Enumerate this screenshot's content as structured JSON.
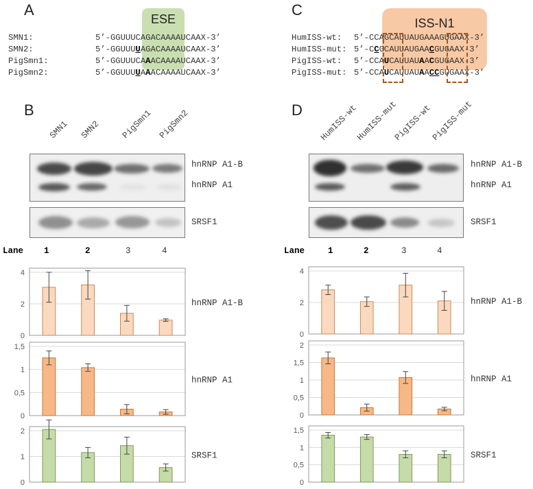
{
  "panel_letters": {
    "a": "A",
    "b": "B",
    "c": "C",
    "d": "D"
  },
  "highlights": {
    "ese": "ESE",
    "iss": "ISS-N1"
  },
  "panel_a": {
    "rows": [
      {
        "label": "SMN1:",
        "segments": [
          {
            "t": "5’-GGUUUC",
            "s": ""
          },
          {
            "t": "AGACAAAAUCAAX-3’",
            "s": ""
          }
        ]
      },
      {
        "label": "SMN2:",
        "segments": [
          {
            "t": "5’-GGUUU",
            "s": ""
          },
          {
            "t": "U",
            "s": "bu"
          },
          {
            "t": "AGACAAAAUCAAX-3’",
            "s": ""
          }
        ]
      },
      {
        "label": "PigSmn1:",
        "segments": [
          {
            "t": "5’-GGUUUCA",
            "s": ""
          },
          {
            "t": "A",
            "s": "b"
          },
          {
            "t": "ACAAAAUCAAX-3’",
            "s": ""
          }
        ]
      },
      {
        "label": "PigSmn2:",
        "segments": [
          {
            "t": "5’-GGUUU",
            "s": ""
          },
          {
            "t": "U",
            "s": "bu"
          },
          {
            "t": "A",
            "s": ""
          },
          {
            "t": "A",
            "s": "b"
          },
          {
            "t": "ACAAAAUCAAX-3’",
            "s": ""
          }
        ]
      }
    ]
  },
  "panel_c": {
    "rows": [
      {
        "label": "HumISS-wt:",
        "segments": [
          {
            "t": "5’-CCAGCAUUAUGAAAGUGAAX-3’",
            "s": ""
          }
        ]
      },
      {
        "label": "HumISS-mut:",
        "segments": [
          {
            "t": "5’-C",
            "s": ""
          },
          {
            "t": "C",
            "s": "bu"
          },
          {
            "t": "GCAUUAUGAA",
            "s": ""
          },
          {
            "t": "C",
            "s": "bu"
          },
          {
            "t": "GUGAAX-3’",
            "s": ""
          }
        ]
      },
      {
        "label": "PigISS-wt:",
        "segments": [
          {
            "t": "5’-CCA",
            "s": ""
          },
          {
            "t": "U",
            "s": "b"
          },
          {
            "t": "CAUUAU",
            "s": ""
          },
          {
            "t": "A",
            "s": "b"
          },
          {
            "t": "A",
            "s": ""
          },
          {
            "t": "C",
            "s": "b"
          },
          {
            "t": "GUGAAX-3’",
            "s": ""
          }
        ]
      },
      {
        "label": "PigISS-mut:",
        "segments": [
          {
            "t": "5’-CCA",
            "s": ""
          },
          {
            "t": "U",
            "s": "b"
          },
          {
            "t": "CAUUAU",
            "s": ""
          },
          {
            "t": "A",
            "s": "b"
          },
          {
            "t": "A",
            "s": ""
          },
          {
            "t": "CC",
            "s": "bu"
          },
          {
            "t": "GUGAAX-3’",
            "s": ""
          }
        ]
      }
    ]
  },
  "panel_b": {
    "lanes": [
      "SMN1",
      "SMN2",
      "PigSmn1",
      "PigSmn2"
    ],
    "blot_labels": [
      "hnRNP A1-B",
      "hnRNP A1",
      "SRSF1"
    ],
    "lane_word": "Lane",
    "lane_numbers": [
      "1",
      "2",
      "3",
      "4"
    ]
  },
  "panel_d": {
    "lanes": [
      "HumISS-wt",
      "HumISS-mut",
      "PigISS-wt",
      "PigISS-mut"
    ],
    "blot_labels": [
      "hnRNP A1-B",
      "hnRNP A1",
      "SRSF1"
    ],
    "lane_word": "Lane",
    "lane_numbers": [
      "1",
      "2",
      "3",
      "4"
    ]
  },
  "chart_data": [
    {
      "type": "bar",
      "panel": "B",
      "series_label": "hnRNP A1-B",
      "categories": [
        "1",
        "2",
        "3",
        "4"
      ],
      "values": [
        3.05,
        3.2,
        1.4,
        0.97
      ],
      "errors": [
        0.95,
        0.9,
        0.5,
        0.08
      ],
      "ylim": [
        0,
        4
      ],
      "yticks": [
        "0",
        "2",
        "4"
      ],
      "ytick_values": [
        0,
        2,
        4
      ],
      "color": "#fbd9be",
      "stroke": "#c68a5c"
    },
    {
      "type": "bar",
      "panel": "B",
      "series_label": "hnRNP A1",
      "categories": [
        "1",
        "2",
        "3",
        "4"
      ],
      "values": [
        1.25,
        1.04,
        0.14,
        0.08
      ],
      "errors": [
        0.15,
        0.08,
        0.1,
        0.05
      ],
      "ylim": [
        0,
        1.5
      ],
      "yticks": [
        "0",
        "0,5",
        "1",
        "1,5"
      ],
      "ytick_values": [
        0,
        0.5,
        1,
        1.5
      ],
      "color": "#f7b885",
      "stroke": "#c0783f"
    },
    {
      "type": "bar",
      "panel": "B",
      "series_label": "SRSF1",
      "categories": [
        "1",
        "2",
        "3",
        "4"
      ],
      "values": [
        2.05,
        1.15,
        1.42,
        0.57
      ],
      "errors": [
        0.37,
        0.2,
        0.33,
        0.14
      ],
      "ylim": [
        0,
        2
      ],
      "yticks": [
        "0",
        "1",
        "2"
      ],
      "ytick_values": [
        0,
        1,
        2
      ],
      "color": "#c5dba8",
      "stroke": "#7e9a5c"
    },
    {
      "type": "bar",
      "panel": "D",
      "series_label": "hnRNP A1-B",
      "categories": [
        "1",
        "2",
        "3",
        "4"
      ],
      "values": [
        2.8,
        2.05,
        3.1,
        2.1
      ],
      "errors": [
        0.3,
        0.3,
        0.75,
        0.6
      ],
      "ylim": [
        0,
        4
      ],
      "yticks": [
        "0",
        "2",
        "4"
      ],
      "ytick_values": [
        0,
        2,
        4
      ],
      "color": "#fbd9be",
      "stroke": "#c68a5c"
    },
    {
      "type": "bar",
      "panel": "D",
      "series_label": "hnRNP A1",
      "categories": [
        "1",
        "2",
        "3",
        "4"
      ],
      "values": [
        1.63,
        0.21,
        1.07,
        0.17
      ],
      "errors": [
        0.17,
        0.1,
        0.17,
        0.05
      ],
      "ylim": [
        0,
        2
      ],
      "yticks": [
        "0",
        "0,5",
        "1",
        "1,5",
        "2"
      ],
      "ytick_values": [
        0,
        0.5,
        1,
        1.5,
        2
      ],
      "color": "#f7b885",
      "stroke": "#c0783f"
    },
    {
      "type": "bar",
      "panel": "D",
      "series_label": "SRSF1",
      "categories": [
        "1",
        "2",
        "3",
        "4"
      ],
      "values": [
        1.35,
        1.3,
        0.8,
        0.8
      ],
      "errors": [
        0.08,
        0.07,
        0.1,
        0.1
      ],
      "ylim": [
        0,
        1.5
      ],
      "yticks": [
        "0",
        "0,5",
        "1",
        "1,5"
      ],
      "ytick_values": [
        0,
        0.5,
        1,
        1.5
      ],
      "color": "#c5dba8",
      "stroke": "#7e9a5c"
    }
  ]
}
